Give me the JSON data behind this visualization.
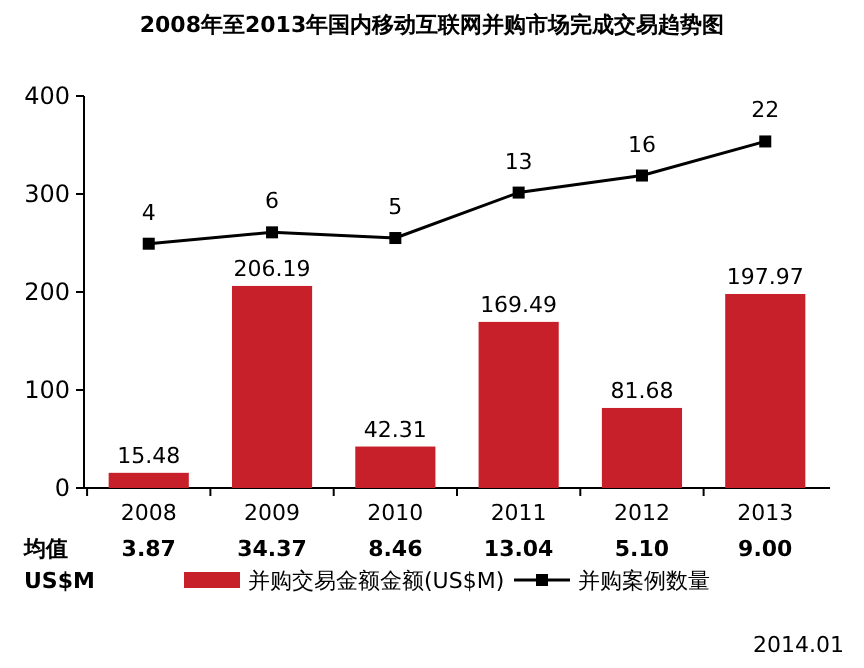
{
  "chart_data": {
    "type": "bar",
    "title": "2008年至2013年国内移动互联网并购市场完成交易趋势图",
    "categories": [
      "2008",
      "2009",
      "2010",
      "2011",
      "2012",
      "2013"
    ],
    "series": [
      {
        "name": "并购交易金额金额(US$M)",
        "color": "#c8202a",
        "values": [
          15.48,
          206.19,
          42.31,
          169.49,
          81.68,
          197.97
        ]
      },
      {
        "name": "并购案例数量",
        "type": "line",
        "axis": "y2",
        "color": "#000000",
        "marker": "square",
        "values": [
          4,
          6,
          5,
          13,
          16,
          22
        ]
      }
    ],
    "ylim": [
      0,
      400
    ],
    "yticks": [
      0,
      100,
      200,
      300,
      400
    ],
    "y2lim": [
      -39,
      30
    ],
    "tick_labels": "xy",
    "data_labels": true,
    "grid": false,
    "legend": "bottom",
    "annotations": [
      "均值",
      "US$M",
      "3.87",
      "34.37",
      "8.46",
      "13.04",
      "5.10",
      "9.00",
      "2014.01"
    ]
  }
}
